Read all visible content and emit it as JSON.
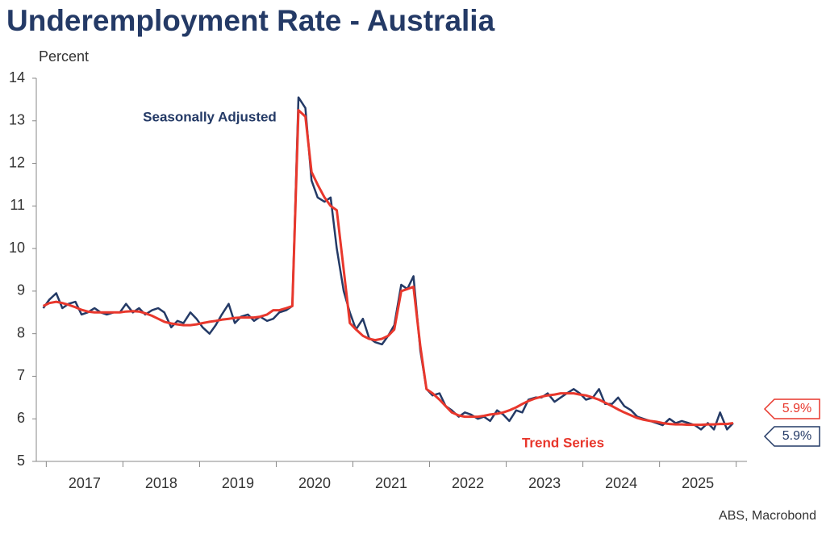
{
  "chart_data": {
    "type": "line",
    "title": "Underemployment Rate - Australia",
    "y_label": "Percent",
    "source": "ABS, Macrobond",
    "annotations": [
      {
        "text": "Seasonally Adjusted",
        "series": 0
      },
      {
        "text": "Trend Series",
        "series": 1
      }
    ],
    "xlim": [
      2016.87,
      2026.14
    ],
    "xticks": [
      {
        "value": 2017.5,
        "label": "2017"
      },
      {
        "value": 2018.5,
        "label": "2018"
      },
      {
        "value": 2019.5,
        "label": "2019"
      },
      {
        "value": 2020.5,
        "label": "2020"
      },
      {
        "value": 2021.5,
        "label": "2021"
      },
      {
        "value": 2022.5,
        "label": "2022"
      },
      {
        "value": 2023.5,
        "label": "2023"
      },
      {
        "value": 2024.5,
        "label": "2024"
      },
      {
        "value": 2025.5,
        "label": "2025"
      }
    ],
    "ylim": [
      5,
      14
    ],
    "yticks": [
      5,
      6,
      7,
      8,
      9,
      10,
      11,
      12,
      13,
      14
    ],
    "x": [
      2016.96,
      2017.04,
      2017.13,
      2017.21,
      2017.29,
      2017.38,
      2017.46,
      2017.54,
      2017.63,
      2017.71,
      2017.79,
      2017.88,
      2017.96,
      2018.04,
      2018.13,
      2018.21,
      2018.29,
      2018.38,
      2018.46,
      2018.54,
      2018.63,
      2018.71,
      2018.79,
      2018.88,
      2018.96,
      2019.04,
      2019.13,
      2019.21,
      2019.29,
      2019.38,
      2019.46,
      2019.54,
      2019.63,
      2019.71,
      2019.79,
      2019.88,
      2019.96,
      2020.04,
      2020.13,
      2020.21,
      2020.29,
      2020.38,
      2020.46,
      2020.54,
      2020.63,
      2020.71,
      2020.79,
      2020.88,
      2020.96,
      2021.04,
      2021.13,
      2021.21,
      2021.29,
      2021.38,
      2021.46,
      2021.54,
      2021.63,
      2021.71,
      2021.79,
      2021.88,
      2021.96,
      2022.04,
      2022.13,
      2022.21,
      2022.29,
      2022.38,
      2022.46,
      2022.54,
      2022.63,
      2022.71,
      2022.79,
      2022.88,
      2022.96,
      2023.04,
      2023.13,
      2023.21,
      2023.29,
      2023.38,
      2023.46,
      2023.54,
      2023.63,
      2023.71,
      2023.79,
      2023.88,
      2023.96,
      2024.04,
      2024.13,
      2024.21,
      2024.29,
      2024.38,
      2024.46,
      2024.54,
      2024.63,
      2024.71,
      2024.79,
      2024.88,
      2024.96,
      2025.04,
      2025.13,
      2025.21,
      2025.29,
      2025.38,
      2025.46,
      2025.54,
      2025.63,
      2025.71,
      2025.79,
      2025.88,
      2025.96
    ],
    "series": [
      {
        "name": "Seasonally Adjusted",
        "color": "#243a66",
        "end_label": "5.9%",
        "values": [
          8.6,
          8.8,
          8.95,
          8.6,
          8.7,
          8.75,
          8.45,
          8.5,
          8.6,
          8.5,
          8.45,
          8.5,
          8.5,
          8.7,
          8.5,
          8.6,
          8.45,
          8.55,
          8.6,
          8.5,
          8.15,
          8.3,
          8.25,
          8.5,
          8.35,
          8.15,
          8.0,
          8.2,
          8.45,
          8.7,
          8.25,
          8.4,
          8.45,
          8.3,
          8.4,
          8.3,
          8.35,
          8.5,
          8.55,
          8.65,
          13.55,
          13.3,
          11.6,
          11.2,
          11.1,
          11.2,
          10.0,
          9.0,
          8.5,
          8.1,
          8.35,
          7.9,
          7.8,
          7.75,
          7.95,
          8.2,
          9.15,
          9.05,
          9.35,
          7.6,
          6.7,
          6.55,
          6.6,
          6.3,
          6.2,
          6.05,
          6.15,
          6.1,
          6.0,
          6.05,
          5.95,
          6.2,
          6.1,
          5.95,
          6.2,
          6.15,
          6.45,
          6.5,
          6.5,
          6.6,
          6.4,
          6.5,
          6.6,
          6.7,
          6.6,
          6.45,
          6.5,
          6.7,
          6.35,
          6.35,
          6.5,
          6.3,
          6.2,
          6.05,
          6.0,
          5.95,
          5.9,
          5.85,
          6.0,
          5.9,
          5.95,
          5.9,
          5.85,
          5.75,
          5.9,
          5.75,
          6.15,
          5.75,
          5.9
        ]
      },
      {
        "name": "Trend Series",
        "color": "#e8372c",
        "end_label": "5.9%",
        "values": [
          8.65,
          8.72,
          8.75,
          8.72,
          8.68,
          8.62,
          8.56,
          8.52,
          8.5,
          8.5,
          8.5,
          8.5,
          8.5,
          8.52,
          8.53,
          8.52,
          8.48,
          8.42,
          8.35,
          8.28,
          8.24,
          8.22,
          8.2,
          8.2,
          8.22,
          8.25,
          8.28,
          8.3,
          8.33,
          8.35,
          8.37,
          8.38,
          8.38,
          8.38,
          8.4,
          8.45,
          8.55,
          8.55,
          8.6,
          8.65,
          13.25,
          13.1,
          11.8,
          11.5,
          11.2,
          11.0,
          10.9,
          9.5,
          8.25,
          8.1,
          7.95,
          7.88,
          7.85,
          7.88,
          7.95,
          8.1,
          9.0,
          9.05,
          9.1,
          7.7,
          6.7,
          6.6,
          6.45,
          6.3,
          6.15,
          6.08,
          6.05,
          6.05,
          6.05,
          6.07,
          6.1,
          6.12,
          6.15,
          6.2,
          6.27,
          6.35,
          6.42,
          6.48,
          6.52,
          6.55,
          6.57,
          6.6,
          6.6,
          6.6,
          6.57,
          6.55,
          6.5,
          6.45,
          6.38,
          6.3,
          6.22,
          6.15,
          6.08,
          6.02,
          5.98,
          5.95,
          5.93,
          5.9,
          5.88,
          5.87,
          5.87,
          5.86,
          5.86,
          5.86,
          5.87,
          5.87,
          5.88,
          5.88,
          5.9
        ]
      }
    ]
  }
}
